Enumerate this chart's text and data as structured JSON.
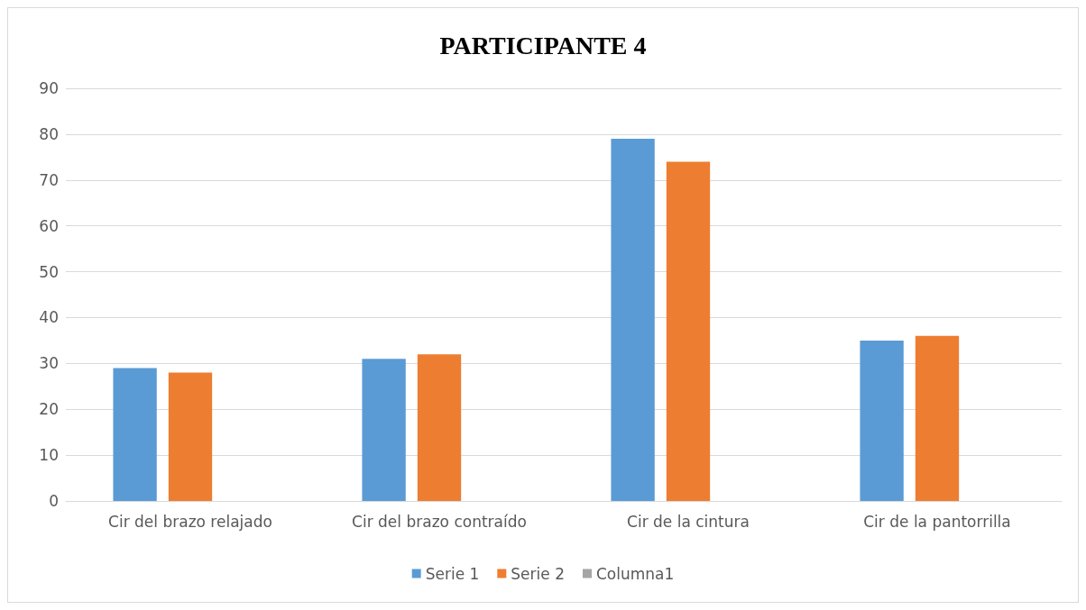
{
  "chart_data": {
    "type": "bar",
    "title": "PARTICIPANTE 4",
    "categories": [
      "Cir del brazo relajado",
      "Cir del brazo contraído",
      "Cir de la cintura",
      "Cir de la pantorrilla"
    ],
    "series": [
      {
        "name": "Serie 1",
        "color": "#5b9bd5",
        "values": [
          29,
          31,
          79,
          35
        ]
      },
      {
        "name": "Serie 2",
        "color": "#ed7d31",
        "values": [
          28,
          32,
          74,
          36
        ]
      },
      {
        "name": "Columna1",
        "color": "#a5a5a5",
        "values": [
          null,
          null,
          null,
          null
        ]
      }
    ],
    "ylim": [
      0,
      90
    ],
    "yticks": [
      0,
      10,
      20,
      30,
      40,
      50,
      60,
      70,
      80,
      90
    ],
    "grid": "y",
    "legend": "bottom"
  }
}
